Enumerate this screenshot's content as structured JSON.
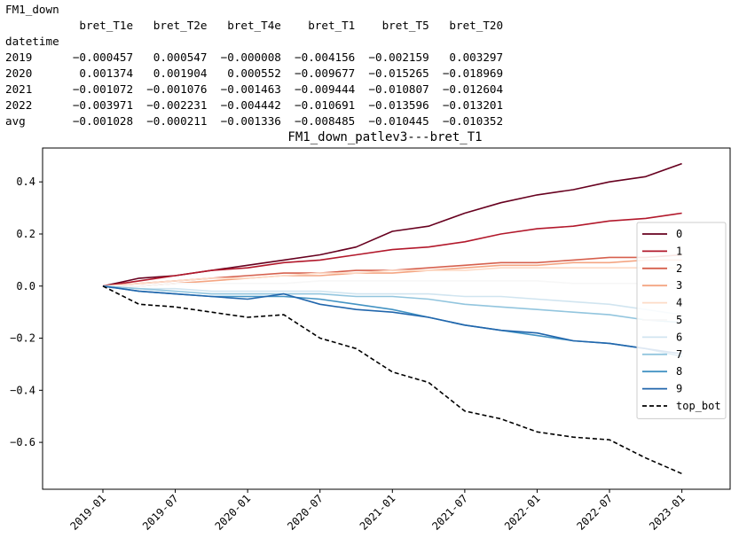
{
  "table": {
    "name": "FM1_down",
    "index_name": "datetime",
    "columns": [
      "bret_T1e",
      "bret_T2e",
      "bret_T4e",
      "bret_T1",
      "bret_T5",
      "bret_T20"
    ],
    "rows": [
      {
        "label": "2019",
        "values": [
          "-0.000457",
          "0.000547",
          "-0.000008",
          "-0.004156",
          "-0.002159",
          "0.003297"
        ]
      },
      {
        "label": "2020",
        "values": [
          "0.001374",
          "0.001904",
          "0.000552",
          "-0.009677",
          "-0.015265",
          "-0.018969"
        ]
      },
      {
        "label": "2021",
        "values": [
          "-0.001072",
          "-0.001076",
          "-0.001463",
          "-0.009444",
          "-0.010807",
          "-0.012604"
        ]
      },
      {
        "label": "2022",
        "values": [
          "-0.003971",
          "-0.002231",
          "-0.004442",
          "-0.010691",
          "-0.013596",
          "-0.013201"
        ]
      },
      {
        "label": "avg",
        "values": [
          "-0.001028",
          "-0.000211",
          "-0.001336",
          "-0.008485",
          "-0.010445",
          "-0.010352"
        ]
      }
    ]
  },
  "chart_data": {
    "type": "line",
    "title": "FM1_down_patlev3---bret_T1",
    "xlabel": "",
    "ylabel": "",
    "x_ticks": [
      "2019-01",
      "2019-07",
      "2020-01",
      "2020-07",
      "2021-01",
      "2021-07",
      "2022-01",
      "2022-07",
      "2023-01"
    ],
    "y_ticks": [
      "0.4",
      "0.2",
      "0.0",
      "−0.2",
      "−0.4",
      "−0.6"
    ],
    "ylim": [
      -0.78,
      0.53
    ],
    "xlim": [
      "2018-08",
      "2023-05"
    ],
    "legend_position": "right",
    "grid": false,
    "series": [
      {
        "name": "0",
        "color": "#67001f",
        "dash": false,
        "x": [
          "2019-01",
          "2019-04",
          "2019-07",
          "2019-10",
          "2020-01",
          "2020-04",
          "2020-07",
          "2020-10",
          "2021-01",
          "2021-04",
          "2021-07",
          "2021-10",
          "2022-01",
          "2022-04",
          "2022-07",
          "2022-10",
          "2023-01"
        ],
        "y": [
          0.0,
          0.03,
          0.04,
          0.06,
          0.08,
          0.1,
          0.12,
          0.15,
          0.21,
          0.23,
          0.28,
          0.32,
          0.35,
          0.37,
          0.4,
          0.42,
          0.47
        ]
      },
      {
        "name": "1",
        "color": "#b2182b",
        "dash": false,
        "x": [
          "2019-01",
          "2019-04",
          "2019-07",
          "2019-10",
          "2020-01",
          "2020-04",
          "2020-07",
          "2020-10",
          "2021-01",
          "2021-04",
          "2021-07",
          "2021-10",
          "2022-01",
          "2022-04",
          "2022-07",
          "2022-10",
          "2023-01"
        ],
        "y": [
          0.0,
          0.02,
          0.04,
          0.06,
          0.07,
          0.09,
          0.1,
          0.12,
          0.14,
          0.15,
          0.17,
          0.2,
          0.22,
          0.23,
          0.25,
          0.26,
          0.28
        ]
      },
      {
        "name": "2",
        "color": "#d6604d",
        "dash": false,
        "x": [
          "2019-01",
          "2019-04",
          "2019-07",
          "2019-10",
          "2020-01",
          "2020-04",
          "2020-07",
          "2020-10",
          "2021-01",
          "2021-04",
          "2021-07",
          "2021-10",
          "2022-01",
          "2022-04",
          "2022-07",
          "2022-10",
          "2023-01"
        ],
        "y": [
          0.0,
          0.01,
          0.02,
          0.03,
          0.04,
          0.05,
          0.05,
          0.06,
          0.06,
          0.07,
          0.08,
          0.09,
          0.09,
          0.1,
          0.11,
          0.11,
          0.12
        ]
      },
      {
        "name": "3",
        "color": "#f4a582",
        "dash": false,
        "x": [
          "2019-01",
          "2019-04",
          "2019-07",
          "2019-10",
          "2020-01",
          "2020-04",
          "2020-07",
          "2020-10",
          "2021-01",
          "2021-04",
          "2021-07",
          "2021-10",
          "2022-01",
          "2022-04",
          "2022-07",
          "2022-10",
          "2023-01"
        ],
        "y": [
          0.0,
          0.0,
          0.01,
          0.02,
          0.03,
          0.04,
          0.04,
          0.05,
          0.05,
          0.06,
          0.07,
          0.08,
          0.08,
          0.09,
          0.09,
          0.1,
          0.1
        ]
      },
      {
        "name": "4",
        "color": "#fddbc7",
        "dash": false,
        "x": [
          "2019-01",
          "2019-04",
          "2019-07",
          "2019-10",
          "2020-01",
          "2020-04",
          "2020-07",
          "2020-10",
          "2021-01",
          "2021-04",
          "2021-07",
          "2021-10",
          "2022-01",
          "2022-04",
          "2022-07",
          "2022-10",
          "2023-01"
        ],
        "y": [
          0.0,
          0.01,
          0.02,
          0.03,
          0.03,
          0.04,
          0.05,
          0.05,
          0.06,
          0.06,
          0.06,
          0.07,
          0.07,
          0.07,
          0.07,
          0.07,
          0.07
        ]
      },
      {
        "name": "5",
        "color": "#f7f7f7",
        "dash": false,
        "x": [
          "2019-01",
          "2019-04",
          "2019-07",
          "2019-10",
          "2020-01",
          "2020-04",
          "2020-07",
          "2020-10",
          "2021-01",
          "2021-04",
          "2021-07",
          "2021-10",
          "2022-01",
          "2022-04",
          "2022-07",
          "2022-10",
          "2023-01"
        ],
        "y": [
          0.0,
          0.0,
          0.01,
          0.01,
          0.01,
          0.01,
          0.02,
          0.02,
          0.02,
          0.02,
          0.02,
          0.02,
          0.02,
          0.01,
          0.01,
          0.01,
          0.01
        ]
      },
      {
        "name": "6",
        "color": "#d1e5f0",
        "dash": false,
        "x": [
          "2019-01",
          "2019-04",
          "2019-07",
          "2019-10",
          "2020-01",
          "2020-04",
          "2020-07",
          "2020-10",
          "2021-01",
          "2021-04",
          "2021-07",
          "2021-10",
          "2022-01",
          "2022-04",
          "2022-07",
          "2022-10",
          "2023-01"
        ],
        "y": [
          0.0,
          -0.01,
          -0.01,
          -0.02,
          -0.02,
          -0.02,
          -0.02,
          -0.03,
          -0.03,
          -0.03,
          -0.04,
          -0.04,
          -0.05,
          -0.06,
          -0.07,
          -0.09,
          -0.11
        ]
      },
      {
        "name": "7",
        "color": "#92c5de",
        "dash": false,
        "x": [
          "2019-01",
          "2019-04",
          "2019-07",
          "2019-10",
          "2020-01",
          "2020-04",
          "2020-07",
          "2020-10",
          "2021-01",
          "2021-04",
          "2021-07",
          "2021-10",
          "2022-01",
          "2022-04",
          "2022-07",
          "2022-10",
          "2023-01"
        ],
        "y": [
          0.0,
          -0.01,
          -0.02,
          -0.03,
          -0.03,
          -0.03,
          -0.03,
          -0.04,
          -0.04,
          -0.05,
          -0.07,
          -0.08,
          -0.09,
          -0.1,
          -0.11,
          -0.13,
          -0.14
        ]
      },
      {
        "name": "8",
        "color": "#4393c3",
        "dash": false,
        "x": [
          "2019-01",
          "2019-04",
          "2019-07",
          "2019-10",
          "2020-01",
          "2020-04",
          "2020-07",
          "2020-10",
          "2021-01",
          "2021-04",
          "2021-07",
          "2021-10",
          "2022-01",
          "2022-04",
          "2022-07",
          "2022-10",
          "2023-01"
        ],
        "y": [
          0.0,
          -0.02,
          -0.03,
          -0.04,
          -0.04,
          -0.04,
          -0.05,
          -0.07,
          -0.09,
          -0.12,
          -0.15,
          -0.17,
          -0.19,
          -0.21,
          -0.22,
          -0.24,
          -0.27
        ]
      },
      {
        "name": "9",
        "color": "#2166ac",
        "dash": false,
        "x": [
          "2019-01",
          "2019-04",
          "2019-07",
          "2019-10",
          "2020-01",
          "2020-04",
          "2020-07",
          "2020-10",
          "2021-01",
          "2021-04",
          "2021-07",
          "2021-10",
          "2022-01",
          "2022-04",
          "2022-07",
          "2022-10",
          "2023-01"
        ],
        "y": [
          0.0,
          -0.02,
          -0.03,
          -0.04,
          -0.05,
          -0.03,
          -0.07,
          -0.09,
          -0.1,
          -0.12,
          -0.15,
          -0.17,
          -0.18,
          -0.21,
          -0.22,
          -0.24,
          -0.26
        ]
      },
      {
        "name": "top_bot",
        "color": "#000000",
        "dash": true,
        "x": [
          "2019-01",
          "2019-04",
          "2019-07",
          "2019-10",
          "2020-01",
          "2020-04",
          "2020-07",
          "2020-10",
          "2021-01",
          "2021-04",
          "2021-07",
          "2021-10",
          "2022-01",
          "2022-04",
          "2022-07",
          "2022-10",
          "2023-01"
        ],
        "y": [
          0.0,
          -0.07,
          -0.08,
          -0.1,
          -0.12,
          -0.11,
          -0.2,
          -0.24,
          -0.33,
          -0.37,
          -0.48,
          -0.51,
          -0.56,
          -0.58,
          -0.59,
          -0.66,
          -0.72
        ]
      }
    ]
  }
}
